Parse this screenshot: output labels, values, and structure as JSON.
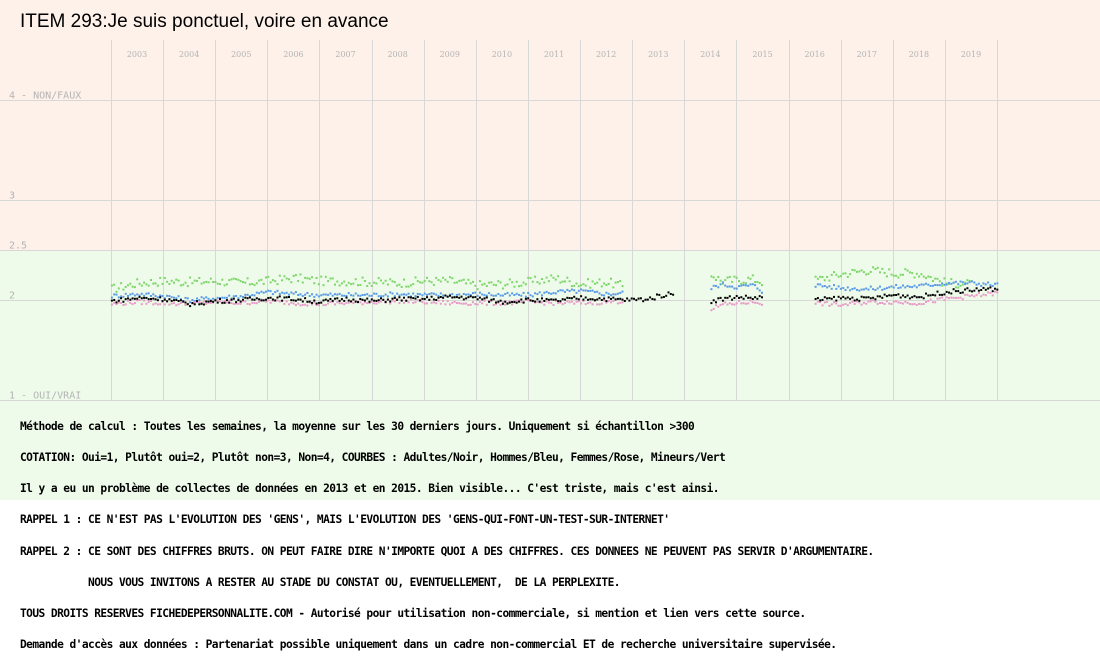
{
  "title": "ITEM 293:Je suis ponctuel, voire en avance",
  "colors": {
    "top_band": "#fdf1ea",
    "bottom_band": "#eefbea",
    "grid": "#d8d8d8",
    "year_label": "#b4b4b4",
    "adultes": "#000000",
    "hommes": "#5a9be6",
    "femmes": "#e89ac8",
    "mineurs": "#7ed66a"
  },
  "chart_data": {
    "type": "scatter",
    "title": "ITEM 293:Je suis ponctuel, voire en avance",
    "y_scale": "reversed",
    "ylim": [
      1,
      4
    ],
    "y_ticks": [
      {
        "value": 4,
        "label": "4 - NON/FAUX"
      },
      {
        "value": 3,
        "label": "3"
      },
      {
        "value": 2.5,
        "label": "2.5"
      },
      {
        "value": 2,
        "label": "2"
      },
      {
        "value": 1,
        "label": "1 - OUI/VRAI"
      }
    ],
    "x_years": [
      "2003",
      "2004",
      "2005",
      "2006",
      "2007",
      "2008",
      "2009",
      "2010",
      "2011",
      "2012",
      "2013",
      "2014",
      "2015",
      "2016",
      "2017",
      "2018",
      "2019"
    ],
    "grid": true,
    "series": [
      {
        "name": "Adultes",
        "color": "#000000",
        "segments": [
          {
            "x": [
              2002.5,
              2003,
              2003.5,
              2004,
              2004.5,
              2005,
              2005.5,
              2006,
              2006.5,
              2007,
              2007.5,
              2008,
              2008.5,
              2009,
              2009.5,
              2010,
              2010.5,
              2011,
              2011.5,
              2012,
              2012.4,
              2012.8,
              2013,
              2013.3
            ],
            "y": [
              2.0,
              2.03,
              2.02,
              1.97,
              2.0,
              2.01,
              2.03,
              2.02,
              1.99,
              2.02,
              2.0,
              2.02,
              2.02,
              2.04,
              2.03,
              1.99,
              2.01,
              2.0,
              2.03,
              2.02,
              2.01,
              2.02,
              2.05,
              2.08
            ]
          },
          {
            "x": [
              2014,
              2014.2,
              2014.5,
              2014.8,
              2015
            ],
            "y": [
              2.0,
              2.02,
              2.04,
              2.03,
              2.04
            ]
          },
          {
            "x": [
              2016,
              2016.5,
              2017,
              2017.5,
              2018,
              2018.5,
              2019,
              2019.5
            ],
            "y": [
              2.01,
              2.03,
              2.02,
              2.06,
              2.04,
              2.09,
              2.11,
              2.12
            ]
          }
        ]
      },
      {
        "name": "Hommes",
        "color": "#5a9be6",
        "segments": [
          {
            "x": [
              2002.5,
              2003,
              2003.5,
              2004,
              2004.5,
              2005,
              2005.5,
              2006,
              2006.5,
              2007,
              2007.5,
              2008,
              2008.5,
              2009,
              2009.5,
              2010,
              2010.5,
              2011,
              2011.5,
              2012,
              2012.3
            ],
            "y": [
              2.05,
              2.07,
              2.05,
              2.01,
              2.03,
              2.05,
              2.09,
              2.07,
              2.06,
              2.06,
              2.06,
              2.07,
              2.06,
              2.06,
              2.07,
              2.06,
              2.06,
              2.09,
              2.1,
              2.07,
              2.08
            ]
          },
          {
            "x": [
              2014,
              2014.2,
              2014.5,
              2014.8,
              2015
            ],
            "y": [
              2.13,
              2.17,
              2.14,
              2.16,
              2.09
            ]
          },
          {
            "x": [
              2016,
              2016.5,
              2017,
              2017.5,
              2018,
              2018.5,
              2019,
              2019.5
            ],
            "y": [
              2.16,
              2.13,
              2.12,
              2.14,
              2.15,
              2.18,
              2.18,
              2.16
            ]
          }
        ]
      },
      {
        "name": "Femmes",
        "color": "#e89ac8",
        "segments": [
          {
            "x": [
              2002.5,
              2003,
              2003.5,
              2004,
              2004.5,
              2005,
              2005.5,
              2006,
              2006.5,
              2007,
              2007.5,
              2008,
              2008.5,
              2009,
              2009.5,
              2010,
              2010.5,
              2011,
              2011.5,
              2012,
              2012.3
            ],
            "y": [
              1.97,
              1.99,
              1.98,
              1.97,
              1.99,
              1.98,
              2.0,
              1.98,
              1.97,
              1.98,
              1.99,
              2.0,
              1.99,
              1.98,
              1.98,
              1.98,
              1.99,
              1.98,
              1.98,
              1.99,
              2.0
            ]
          },
          {
            "x": [
              2014,
              2014.2,
              2014.5,
              2014.8,
              2015
            ],
            "y": [
              1.92,
              1.96,
              1.98,
              1.99,
              1.98
            ]
          },
          {
            "x": [
              2016,
              2016.5,
              2017,
              2017.5,
              2018,
              2018.5,
              2019,
              2019.5
            ],
            "y": [
              1.98,
              1.96,
              1.99,
              1.99,
              1.98,
              2.02,
              2.05,
              2.08
            ]
          }
        ]
      },
      {
        "name": "Mineurs",
        "color": "#7ed66a",
        "segments": [
          {
            "x": [
              2002.5,
              2003,
              2003.5,
              2004,
              2004.5,
              2005,
              2005.5,
              2006,
              2006.5,
              2007,
              2007.5,
              2008,
              2008.5,
              2009,
              2009.5,
              2010,
              2010.5,
              2011,
              2011.5,
              2012,
              2012.3
            ],
            "y": [
              2.12,
              2.18,
              2.2,
              2.19,
              2.2,
              2.18,
              2.2,
              2.23,
              2.2,
              2.2,
              2.19,
              2.18,
              2.2,
              2.2,
              2.16,
              2.17,
              2.19,
              2.23,
              2.17,
              2.19,
              2.15
            ]
          },
          {
            "x": [
              2014,
              2014.2,
              2014.5,
              2014.8,
              2015
            ],
            "y": [
              2.27,
              2.2,
              2.21,
              2.22,
              2.19
            ]
          },
          {
            "x": [
              2016,
              2016.5,
              2017,
              2017.5,
              2018,
              2018.5,
              2019
            ],
            "y": [
              2.21,
              2.27,
              2.31,
              2.28,
              2.28,
              2.18,
              2.17
            ]
          }
        ]
      }
    ]
  },
  "footer_lines": [
    "Méthode de calcul : Toutes les semaines, la moyenne sur les 30 derniers jours. Uniquement si échantillon >300",
    "COTATION: Oui=1, Plutôt oui=2, Plutôt non=3, Non=4, COURBES : Adultes/Noir, Hommes/Bleu, Femmes/Rose, Mineurs/Vert",
    "Il y a eu un problème de collectes de données en 2013 et en 2015. Bien visible... C'est triste, mais c'est ainsi.",
    "RAPPEL 1 : CE N'EST PAS L'EVOLUTION DES 'GENS', MAIS L'EVOLUTION DES 'GENS-QUI-FONT-UN-TEST-SUR-INTERNET'",
    "RAPPEL 2 : CE SONT DES CHIFFRES BRUTS. ON PEUT FAIRE DIRE N'IMPORTE QUOI A DES CHIFFRES. CES DONNEES NE PEUVENT PAS SERVIR D'ARGUMENTAIRE.",
    "           NOUS VOUS INVITONS A RESTER AU STADE DU CONSTAT OU, EVENTUELLEMENT,  DE LA PERPLEXITE.",
    "TOUS DROITS RESERVES FICHEDEPERSONNALITE.COM - Autorisé pour utilisation non-commerciale, si mention et lien vers cette source.",
    "Demande d'accès aux données : Partenariat possible uniquement dans un cadre non-commercial ET de recherche universitaire supervisée."
  ]
}
